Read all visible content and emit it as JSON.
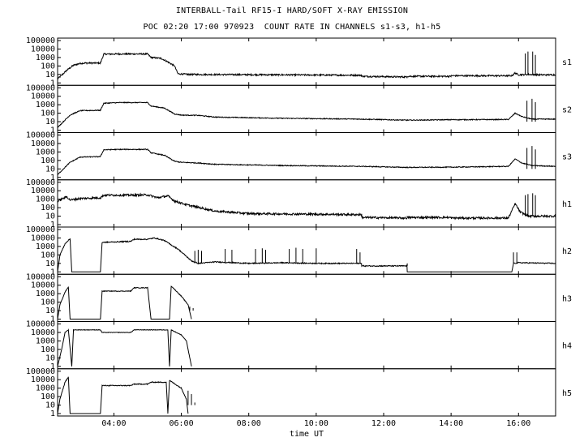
{
  "chart_data": {
    "type": "line",
    "title": "INTERBALL-Tail RF15-I HARD/SOFT X-RAY EMISSION",
    "subtitle": "POC 02:20 17:00 970923  COUNT RATE IN CHANNELS s1-s3, h1-h5",
    "xlabel": "time UT",
    "x_unit": "hours UT",
    "xlim": [
      2.33,
      17.1
    ],
    "x_ticks": [
      {
        "hour": 4,
        "label": "04:00"
      },
      {
        "hour": 6,
        "label": "06:00"
      },
      {
        "hour": 8,
        "label": "08:00"
      },
      {
        "hour": 10,
        "label": "10:00"
      },
      {
        "hour": 12,
        "label": "12:00"
      },
      {
        "hour": 14,
        "label": "14:00"
      },
      {
        "hour": 16,
        "label": "16:00"
      }
    ],
    "y_scale": "log",
    "ylim": [
      1,
      100000
    ],
    "y_tick_labels": [
      "100000",
      "10000",
      "1000",
      "100",
      "10",
      "1"
    ],
    "grid": false,
    "series": [
      {
        "name": "s1",
        "noise_log": 0.09,
        "y_max": 100000,
        "points": [
          [
            2.33,
            3
          ],
          [
            2.45,
            8
          ],
          [
            2.6,
            30
          ],
          [
            2.8,
            120
          ],
          [
            3.0,
            200
          ],
          [
            3.15,
            220
          ],
          [
            3.6,
            220
          ],
          [
            3.7,
            2500
          ],
          [
            4.15,
            2600
          ],
          [
            5.0,
            2600
          ],
          [
            5.1,
            1000
          ],
          [
            5.4,
            800
          ],
          [
            5.6,
            300
          ],
          [
            5.8,
            100
          ],
          [
            5.9,
            12
          ],
          [
            6.2,
            10
          ],
          [
            9.0,
            9
          ],
          [
            11.35,
            8
          ],
          [
            11.35,
            6
          ],
          [
            12.7,
            5
          ],
          [
            12.7,
            6
          ],
          [
            14.0,
            6
          ],
          [
            14.0,
            7
          ],
          [
            15.8,
            7
          ],
          [
            15.9,
            15
          ],
          [
            16.0,
            9
          ],
          [
            16.3,
            10
          ],
          [
            16.6,
            9
          ],
          [
            17.1,
            9
          ]
        ],
        "spikes": [
          [
            16.2,
            3000
          ],
          [
            16.28,
            5000
          ],
          [
            16.42,
            5000
          ],
          [
            16.5,
            2000
          ]
        ]
      },
      {
        "name": "s2",
        "noise_log": 0.05,
        "y_max": 100000,
        "points": [
          [
            2.33,
            2
          ],
          [
            2.5,
            10
          ],
          [
            2.7,
            60
          ],
          [
            3.0,
            200
          ],
          [
            3.6,
            220
          ],
          [
            3.7,
            1500
          ],
          [
            4.2,
            1800
          ],
          [
            5.0,
            1800
          ],
          [
            5.1,
            700
          ],
          [
            5.5,
            400
          ],
          [
            5.8,
            80
          ],
          [
            6.0,
            60
          ],
          [
            6.5,
            55
          ],
          [
            7.0,
            35
          ],
          [
            9.0,
            25
          ],
          [
            11.35,
            20
          ],
          [
            12.7,
            15
          ],
          [
            14.0,
            17
          ],
          [
            15.7,
            18
          ],
          [
            15.9,
            100
          ],
          [
            16.1,
            40
          ],
          [
            16.4,
            20
          ],
          [
            17.1,
            20
          ]
        ],
        "spikes": [
          [
            16.25,
            3000
          ],
          [
            16.4,
            5000
          ],
          [
            16.5,
            2000
          ]
        ]
      },
      {
        "name": "s3",
        "noise_log": 0.05,
        "y_max": 100000,
        "points": [
          [
            2.33,
            2
          ],
          [
            2.5,
            10
          ],
          [
            2.7,
            60
          ],
          [
            3.0,
            250
          ],
          [
            3.6,
            280
          ],
          [
            3.7,
            1800
          ],
          [
            4.2,
            2000
          ],
          [
            5.0,
            2000
          ],
          [
            5.1,
            800
          ],
          [
            5.5,
            400
          ],
          [
            5.8,
            80
          ],
          [
            6.0,
            60
          ],
          [
            6.5,
            50
          ],
          [
            7.0,
            35
          ],
          [
            9.0,
            25
          ],
          [
            11.35,
            20
          ],
          [
            12.7,
            15
          ],
          [
            14.0,
            16
          ],
          [
            15.7,
            20
          ],
          [
            15.9,
            150
          ],
          [
            16.1,
            50
          ],
          [
            16.4,
            25
          ],
          [
            17.1,
            20
          ]
        ],
        "spikes": [
          [
            16.25,
            3000
          ],
          [
            16.4,
            5000
          ],
          [
            16.5,
            2000
          ]
        ]
      },
      {
        "name": "h1",
        "noise_log": 0.12,
        "y_max": 100000,
        "points": [
          [
            2.33,
            500
          ],
          [
            2.4,
            800
          ],
          [
            2.6,
            2000
          ],
          [
            2.7,
            800
          ],
          [
            3.0,
            1200
          ],
          [
            3.6,
            1500
          ],
          [
            3.7,
            3000
          ],
          [
            4.5,
            3000
          ],
          [
            5.0,
            3200
          ],
          [
            5.3,
            1500
          ],
          [
            5.6,
            2500
          ],
          [
            5.8,
            600
          ],
          [
            6.2,
            200
          ],
          [
            7.0,
            40
          ],
          [
            8.0,
            20
          ],
          [
            11.35,
            15
          ],
          [
            11.35,
            7
          ],
          [
            12.7,
            6
          ],
          [
            12.7,
            7
          ],
          [
            14.0,
            7
          ],
          [
            14.0,
            6
          ],
          [
            15.7,
            6
          ],
          [
            15.9,
            300
          ],
          [
            16.05,
            30
          ],
          [
            16.3,
            10
          ],
          [
            17.1,
            10
          ]
        ],
        "spikes": [
          [
            16.2,
            3000
          ],
          [
            16.28,
            4000
          ],
          [
            16.42,
            5000
          ],
          [
            16.5,
            3000
          ]
        ]
      },
      {
        "name": "h2",
        "noise_log": 0.06,
        "y_max": 100000,
        "points": [
          [
            2.33,
            1
          ],
          [
            2.4,
            100
          ],
          [
            2.55,
            2000
          ],
          [
            2.7,
            8000
          ],
          [
            2.75,
            1
          ],
          [
            3.6,
            1
          ],
          [
            3.65,
            3000
          ],
          [
            4.5,
            4000
          ],
          [
            4.6,
            7000
          ],
          [
            5.0,
            7000
          ],
          [
            5.2,
            10000
          ],
          [
            5.5,
            5000
          ],
          [
            5.7,
            1500
          ],
          [
            5.9,
            500
          ],
          [
            6.1,
            100
          ],
          [
            6.3,
            20
          ],
          [
            6.5,
            10
          ],
          [
            7.0,
            15
          ],
          [
            8.0,
            10
          ],
          [
            9.0,
            12
          ],
          [
            10.0,
            10
          ],
          [
            11.35,
            10
          ],
          [
            11.35,
            5
          ],
          [
            12.7,
            5
          ],
          [
            12.7,
            1
          ],
          [
            15.8,
            1
          ],
          [
            15.85,
            10
          ],
          [
            16.0,
            12
          ],
          [
            17.1,
            10
          ]
        ],
        "spikes": [
          [
            6.4,
            300
          ],
          [
            6.5,
            400
          ],
          [
            6.6,
            300
          ],
          [
            7.3,
            500
          ],
          [
            7.5,
            400
          ],
          [
            8.2,
            500
          ],
          [
            8.4,
            600
          ],
          [
            8.5,
            400
          ],
          [
            9.2,
            500
          ],
          [
            9.4,
            700
          ],
          [
            9.6,
            500
          ],
          [
            10.0,
            600
          ],
          [
            11.2,
            500
          ],
          [
            11.3,
            200
          ],
          [
            12.7,
            5
          ],
          [
            15.85,
            200
          ],
          [
            15.95,
            200
          ]
        ]
      },
      {
        "name": "h3",
        "noise_log": 0.04,
        "y_max": 100000,
        "points": [
          [
            2.33,
            1
          ],
          [
            2.4,
            50
          ],
          [
            2.55,
            1500
          ],
          [
            2.65,
            6000
          ],
          [
            2.7,
            1
          ],
          [
            3.6,
            1
          ],
          [
            3.65,
            2000
          ],
          [
            4.5,
            2000
          ],
          [
            4.6,
            5000
          ],
          [
            5.0,
            5000
          ],
          [
            5.1,
            1
          ],
          [
            5.65,
            1
          ],
          [
            5.7,
            8000
          ],
          [
            6.0,
            500
          ],
          [
            6.2,
            50
          ],
          [
            6.3,
            1
          ]
        ],
        "spikes": [
          [
            6.25,
            30
          ],
          [
            6.35,
            20
          ]
        ]
      },
      {
        "name": "h4",
        "noise_log": 0.03,
        "y_max": 100000,
        "points": [
          [
            2.33,
            1
          ],
          [
            2.45,
            100
          ],
          [
            2.55,
            10000
          ],
          [
            2.65,
            20000
          ],
          [
            2.75,
            1
          ],
          [
            2.8,
            20000
          ],
          [
            3.6,
            20000
          ],
          [
            3.65,
            10000
          ],
          [
            4.5,
            10000
          ],
          [
            4.6,
            20000
          ],
          [
            5.6,
            20000
          ],
          [
            5.65,
            1
          ],
          [
            5.7,
            20000
          ],
          [
            6.0,
            5000
          ],
          [
            6.15,
            1000
          ],
          [
            6.25,
            10
          ],
          [
            6.3,
            1
          ]
        ],
        "spikes": []
      },
      {
        "name": "h5",
        "noise_log": 0.05,
        "y_max": 100000,
        "points": [
          [
            2.33,
            1
          ],
          [
            2.4,
            50
          ],
          [
            2.55,
            5000
          ],
          [
            2.65,
            20000
          ],
          [
            2.7,
            1
          ],
          [
            3.6,
            1
          ],
          [
            3.65,
            2000
          ],
          [
            4.5,
            2000
          ],
          [
            4.6,
            3000
          ],
          [
            5.0,
            3000
          ],
          [
            5.1,
            5000
          ],
          [
            5.55,
            5000
          ],
          [
            5.6,
            1
          ],
          [
            5.65,
            8000
          ],
          [
            6.0,
            1000
          ],
          [
            6.15,
            50
          ],
          [
            6.2,
            1
          ]
        ],
        "spikes": [
          [
            6.2,
            500
          ],
          [
            6.3,
            200
          ],
          [
            6.4,
            20
          ]
        ]
      }
    ]
  }
}
